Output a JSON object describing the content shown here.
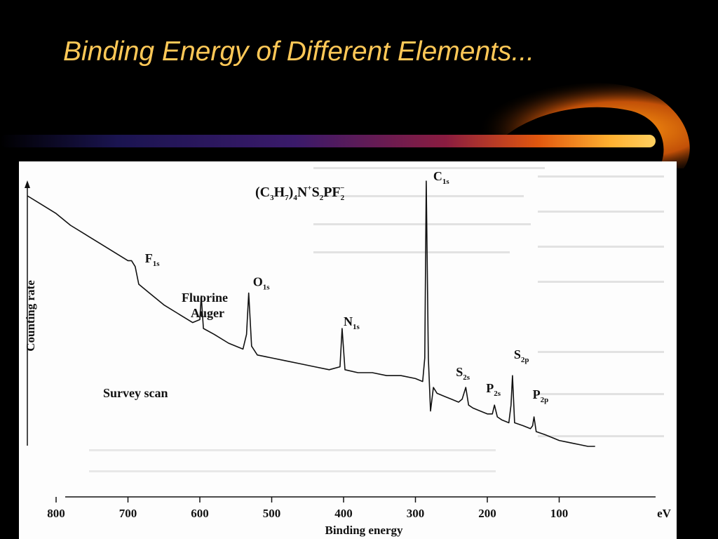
{
  "slide": {
    "title": "Binding Energy of Different Elements..."
  },
  "colors": {
    "background": "#000000",
    "title": "#ffc857",
    "accent_orange": "#ff8c00",
    "figure_paper": "#fdfdfd",
    "ink": "#111111"
  },
  "chart_data": {
    "type": "line",
    "title": "",
    "xlabel": "Binding energy",
    "ylabel": "Counting rate",
    "x_unit": "eV",
    "xlim": [
      0,
      840
    ],
    "x_reversed": true,
    "x_ticks": [
      800,
      700,
      600,
      500,
      400,
      300,
      200,
      100
    ],
    "y_ticks_shown": false,
    "grid": false,
    "legend": "none",
    "formula": "(C3H7)4N+S2PF2−",
    "annotation_survey": "Survey scan",
    "peaks": [
      {
        "label": "F",
        "sub": "1s",
        "x": 690,
        "y": 0.71
      },
      {
        "label": "Fluorine",
        "label2": "Auger",
        "x": 598,
        "y": 0.61
      },
      {
        "label": "O",
        "sub": "1s",
        "x": 532,
        "y": 0.62
      },
      {
        "label": "N",
        "sub": "1s",
        "x": 402,
        "y": 0.5
      },
      {
        "label": "C",
        "sub": "1s",
        "x": 285,
        "y": 1.0
      },
      {
        "label": "S",
        "sub": "2s",
        "x": 230,
        "y": 0.3
      },
      {
        "label": "P",
        "sub": "2s",
        "x": 190,
        "y": 0.24
      },
      {
        "label": "S",
        "sub": "2p",
        "x": 165,
        "y": 0.34
      },
      {
        "label": "P",
        "sub": "2p",
        "x": 135,
        "y": 0.2
      }
    ],
    "series": [
      {
        "x": [
          840,
          820,
          800,
          780,
          760,
          740,
          720,
          700,
          695,
          690,
          685,
          670,
          650,
          630,
          610,
          600,
          598,
          595,
          580,
          560,
          540,
          535,
          532,
          528,
          520,
          500,
          480,
          460,
          440,
          420,
          405,
          402,
          398,
          380,
          360,
          340,
          320,
          300,
          290,
          287,
          285,
          282,
          279,
          275,
          270,
          260,
          250,
          240,
          235,
          230,
          226,
          220,
          210,
          200,
          193,
          190,
          186,
          180,
          170,
          167,
          165,
          162,
          150,
          140,
          137,
          135,
          132,
          120,
          110,
          100,
          90,
          80,
          70,
          60,
          50
        ],
        "y": [
          0.95,
          0.92,
          0.89,
          0.85,
          0.82,
          0.79,
          0.76,
          0.73,
          0.73,
          0.71,
          0.65,
          0.62,
          0.58,
          0.55,
          0.52,
          0.53,
          0.61,
          0.5,
          0.48,
          0.45,
          0.43,
          0.48,
          0.62,
          0.44,
          0.41,
          0.4,
          0.39,
          0.38,
          0.37,
          0.36,
          0.37,
          0.5,
          0.36,
          0.35,
          0.35,
          0.34,
          0.34,
          0.33,
          0.32,
          0.4,
          1.0,
          0.4,
          0.22,
          0.3,
          0.28,
          0.27,
          0.26,
          0.25,
          0.26,
          0.3,
          0.24,
          0.23,
          0.22,
          0.21,
          0.21,
          0.24,
          0.2,
          0.19,
          0.18,
          0.24,
          0.34,
          0.18,
          0.17,
          0.16,
          0.17,
          0.2,
          0.15,
          0.14,
          0.13,
          0.12,
          0.115,
          0.11,
          0.105,
          0.1,
          0.1
        ]
      }
    ]
  }
}
